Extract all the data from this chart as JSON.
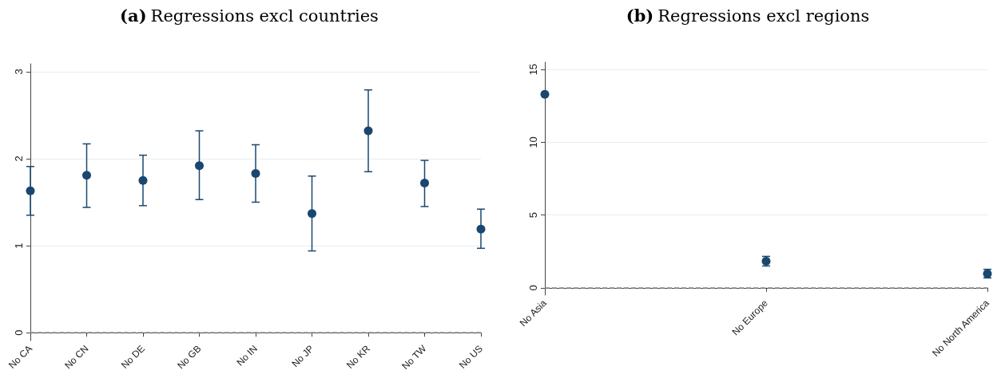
{
  "chart_data": [
    {
      "type": "scatter",
      "title": "(a) Regressions excl countries",
      "categories": [
        "No CA",
        "No CN",
        "No DE",
        "No GB",
        "No IN",
        "No JP",
        "No KR",
        "No TW",
        "No US"
      ],
      "values": [
        1.63,
        1.81,
        1.75,
        1.92,
        1.83,
        1.37,
        2.32,
        1.72,
        1.19
      ],
      "errors": [
        [
          1.35,
          1.91
        ],
        [
          1.44,
          2.17
        ],
        [
          1.46,
          2.04
        ],
        [
          1.53,
          2.32
        ],
        [
          1.5,
          2.16
        ],
        [
          0.94,
          1.8
        ],
        [
          1.85,
          2.79
        ],
        [
          1.45,
          1.98
        ],
        [
          0.97,
          1.42
        ]
      ],
      "color": "#1a476f",
      "ylim": [
        -0.09,
        3.09
      ],
      "yticks": [
        0,
        1,
        2,
        3
      ],
      "grid": "y",
      "marker": "circle",
      "ref_lines": [
        {
          "axis": "y",
          "value": 0,
          "color": "#8c8c8c",
          "line_style": "dashed"
        }
      ]
    },
    {
      "type": "scatter",
      "title": "(b) Regressions excl regions",
      "categories": [
        "No Asia",
        "No Europe",
        "No North America"
      ],
      "values": [
        13.3,
        1.83,
        0.97
      ],
      "errors": [
        null,
        [
          1.5,
          2.16
        ],
        [
          0.68,
          1.27
        ]
      ],
      "color": "#1a476f",
      "ylim": [
        -0.5,
        15.5
      ],
      "yticks": [
        0,
        5,
        10,
        15
      ],
      "grid": "y",
      "marker": "circle",
      "ref_lines": [
        {
          "axis": "y",
          "value": 0,
          "color": "#8c8c8c",
          "line_style": "dashed"
        }
      ]
    }
  ]
}
